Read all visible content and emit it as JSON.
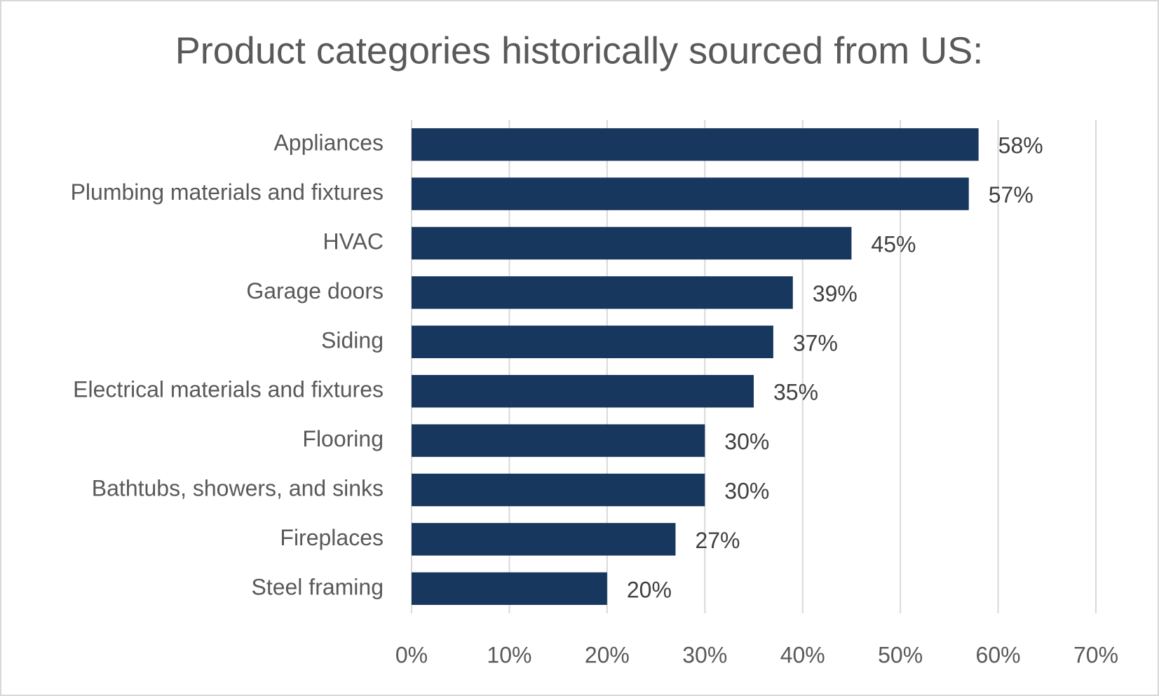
{
  "chart_data": {
    "type": "bar",
    "orientation": "horizontal",
    "title": "Product categories historically sourced from US:",
    "categories": [
      "Appliances",
      "Plumbing materials and fixtures",
      "HVAC",
      "Garage doors",
      "Siding",
      "Electrical materials and fixtures",
      "Flooring",
      "Bathtubs, showers, and sinks",
      "Fireplaces",
      "Steel framing"
    ],
    "values": [
      58,
      57,
      45,
      39,
      37,
      35,
      30,
      30,
      27,
      20
    ],
    "value_labels": [
      "58%",
      "57%",
      "45%",
      "39%",
      "37%",
      "35%",
      "30%",
      "30%",
      "27%",
      "20%"
    ],
    "color": "#17375e",
    "xlim": [
      0,
      70
    ],
    "xticks": [
      {
        "value": 0,
        "label": "0%"
      },
      {
        "value": 10,
        "label": "10%"
      },
      {
        "value": 20,
        "label": "20%"
      },
      {
        "value": 30,
        "label": "30%"
      },
      {
        "value": 40,
        "label": "40%"
      },
      {
        "value": 50,
        "label": "50%"
      },
      {
        "value": 60,
        "label": "60%"
      },
      {
        "value": 70,
        "label": "70%"
      }
    ],
    "grid": true
  }
}
